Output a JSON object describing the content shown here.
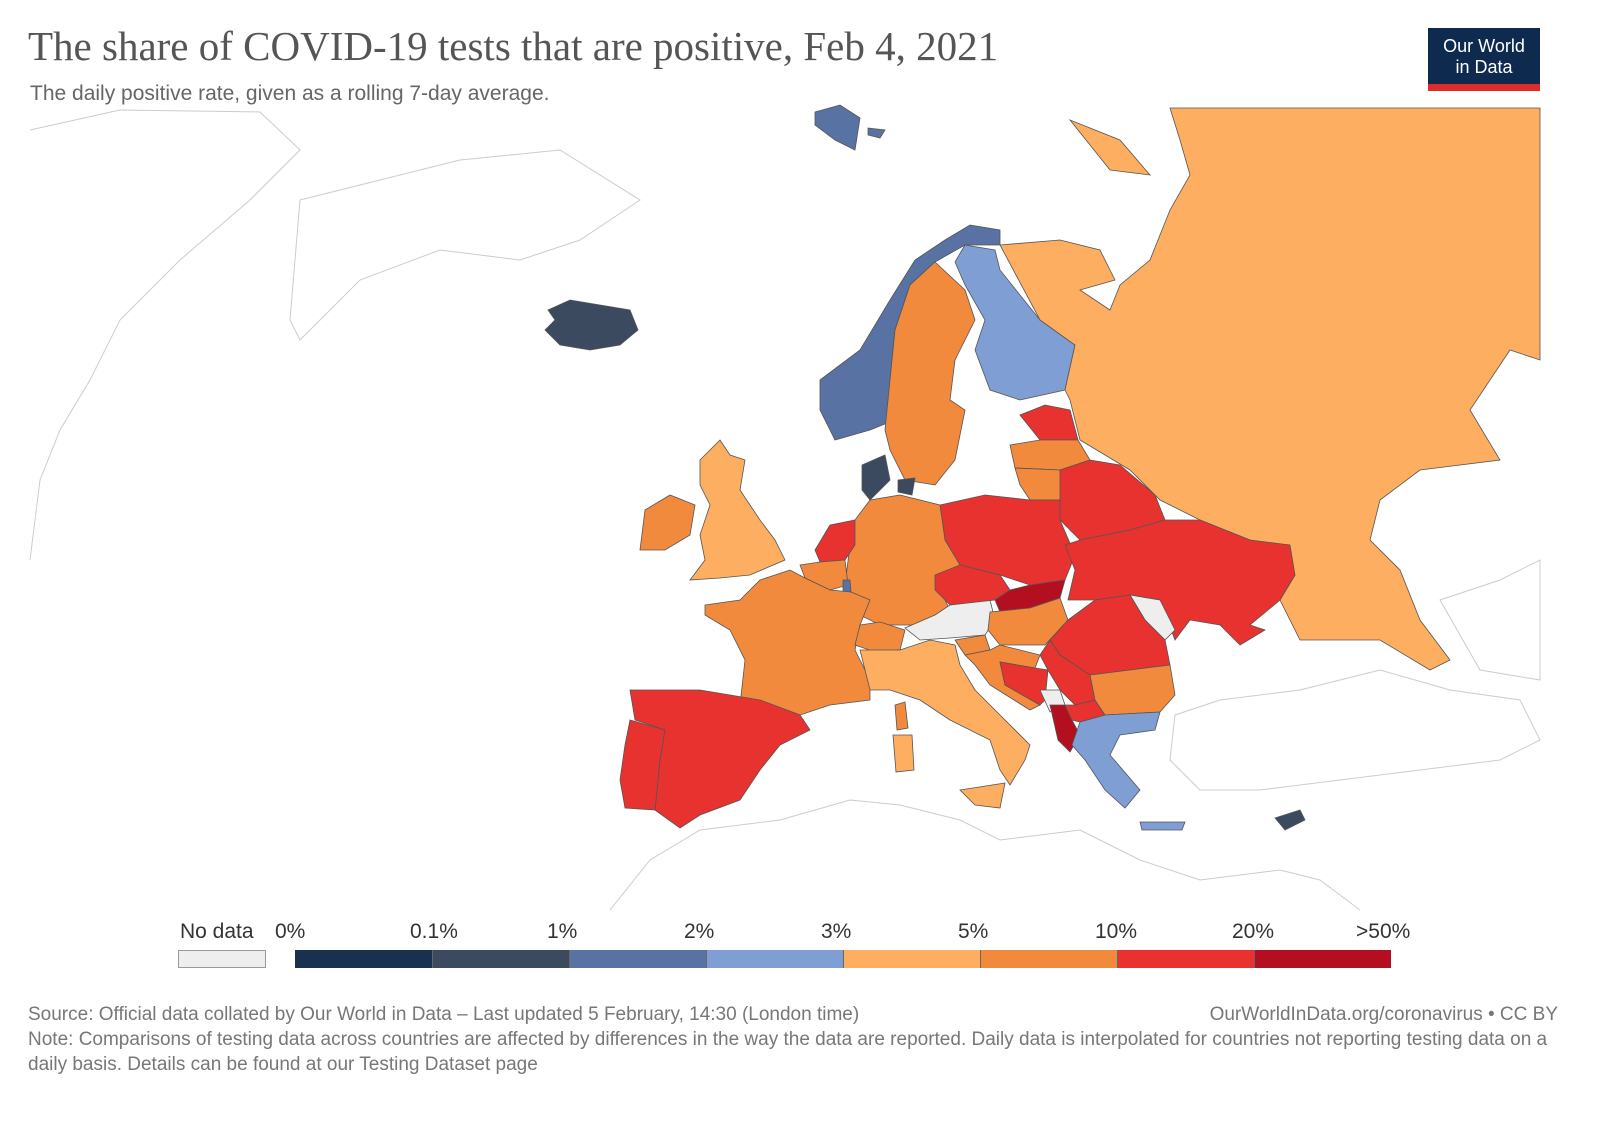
{
  "title": "The share of COVID-19 tests that are positive, Feb 4, 2021",
  "subtitle": "The daily positive rate, given as a rolling 7-day average.",
  "logo": {
    "line1": "Our World",
    "line2": "in Data",
    "bg": "#0f2a4f",
    "accent": "#dd2c2a"
  },
  "legend": {
    "no_data_label": "No data",
    "no_data_color": "#eeeeee",
    "ticks": [
      "0%",
      "0.1%",
      "1%",
      "2%",
      "3%",
      "5%",
      "10%",
      "20%",
      ">50%"
    ],
    "bins": [
      {
        "range": "0%-0.1%",
        "color": "#19304f"
      },
      {
        "range": "0.1%-1%",
        "color": "#3b4a5f"
      },
      {
        "range": "1%-2%",
        "color": "#5872a4"
      },
      {
        "range": "2%-3%",
        "color": "#7f9ed3"
      },
      {
        "range": "3%-5%",
        "color": "#fdae61"
      },
      {
        "range": "5%-10%",
        "color": "#f28a3e"
      },
      {
        "range": "10%-20%",
        "color": "#e8322f"
      },
      {
        "range": ">20%",
        "color": "#b40f20"
      }
    ]
  },
  "regions": [
    {
      "id": "iceland",
      "bin": 1
    },
    {
      "id": "svalbard",
      "bin": 2
    },
    {
      "id": "norway",
      "bin": 2
    },
    {
      "id": "sweden",
      "bin": 5
    },
    {
      "id": "finland",
      "bin": 3
    },
    {
      "id": "russia",
      "bin": 4
    },
    {
      "id": "estonia",
      "bin": 6
    },
    {
      "id": "latvia",
      "bin": 5
    },
    {
      "id": "lithuania",
      "bin": 5
    },
    {
      "id": "belarus",
      "bin": 6
    },
    {
      "id": "poland",
      "bin": 6
    },
    {
      "id": "germany",
      "bin": 5
    },
    {
      "id": "denmark",
      "bin": 1
    },
    {
      "id": "uk",
      "bin": 4
    },
    {
      "id": "ireland",
      "bin": 5
    },
    {
      "id": "netherlands",
      "bin": 6
    },
    {
      "id": "belgium",
      "bin": 5
    },
    {
      "id": "luxembourg",
      "bin": 2
    },
    {
      "id": "france",
      "bin": 5
    },
    {
      "id": "spain",
      "bin": 6
    },
    {
      "id": "portugal",
      "bin": 6
    },
    {
      "id": "switzerland",
      "bin": 5
    },
    {
      "id": "austria",
      "bin": -1
    },
    {
      "id": "czechia",
      "bin": 6
    },
    {
      "id": "slovakia",
      "bin": 7
    },
    {
      "id": "hungary",
      "bin": 5
    },
    {
      "id": "ukraine",
      "bin": 6
    },
    {
      "id": "moldova",
      "bin": -1
    },
    {
      "id": "romania",
      "bin": 6
    },
    {
      "id": "italy",
      "bin": 4
    },
    {
      "id": "sardinia",
      "bin": 4
    },
    {
      "id": "corsica",
      "bin": 5
    },
    {
      "id": "sicily",
      "bin": 4
    },
    {
      "id": "slovenia",
      "bin": 5
    },
    {
      "id": "croatia",
      "bin": 5
    },
    {
      "id": "bosnia",
      "bin": 6
    },
    {
      "id": "serbia",
      "bin": 6
    },
    {
      "id": "montenegro",
      "bin": -1
    },
    {
      "id": "albania",
      "bin": 7
    },
    {
      "id": "north-macedonia",
      "bin": 6
    },
    {
      "id": "bulgaria",
      "bin": 5
    },
    {
      "id": "greece",
      "bin": 3
    },
    {
      "id": "crete",
      "bin": 3
    },
    {
      "id": "cyprus",
      "bin": 1
    }
  ],
  "footer": {
    "source": "Source: Official data collated by Our World in Data – Last updated 5 February, 14:30 (London time)",
    "link": "OurWorldInData.org/coronavirus • CC BY",
    "note": "Note: Comparisons of testing data across countries are affected by differences in the way the data are reported. Daily data is interpolated for countries not reporting testing data on a daily basis. Details can be found at our Testing Dataset page"
  }
}
